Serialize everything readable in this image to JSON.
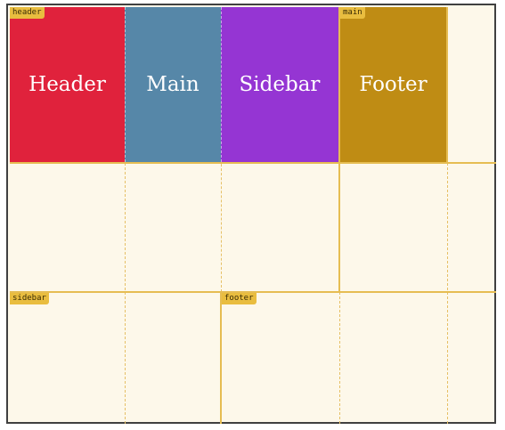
{
  "areas": {
    "header": {
      "tag": "header"
    },
    "main": {
      "tag": "main"
    },
    "sidebar": {
      "tag": "sidebar"
    },
    "footer": {
      "tag": "footer"
    }
  },
  "items": [
    {
      "label": "Header",
      "color": "#e0223c"
    },
    {
      "label": "Main",
      "color": "#5687a8"
    },
    {
      "label": "Sidebar",
      "color": "#9535d3"
    },
    {
      "label": "Footer",
      "color": "#bf8c14"
    }
  ]
}
